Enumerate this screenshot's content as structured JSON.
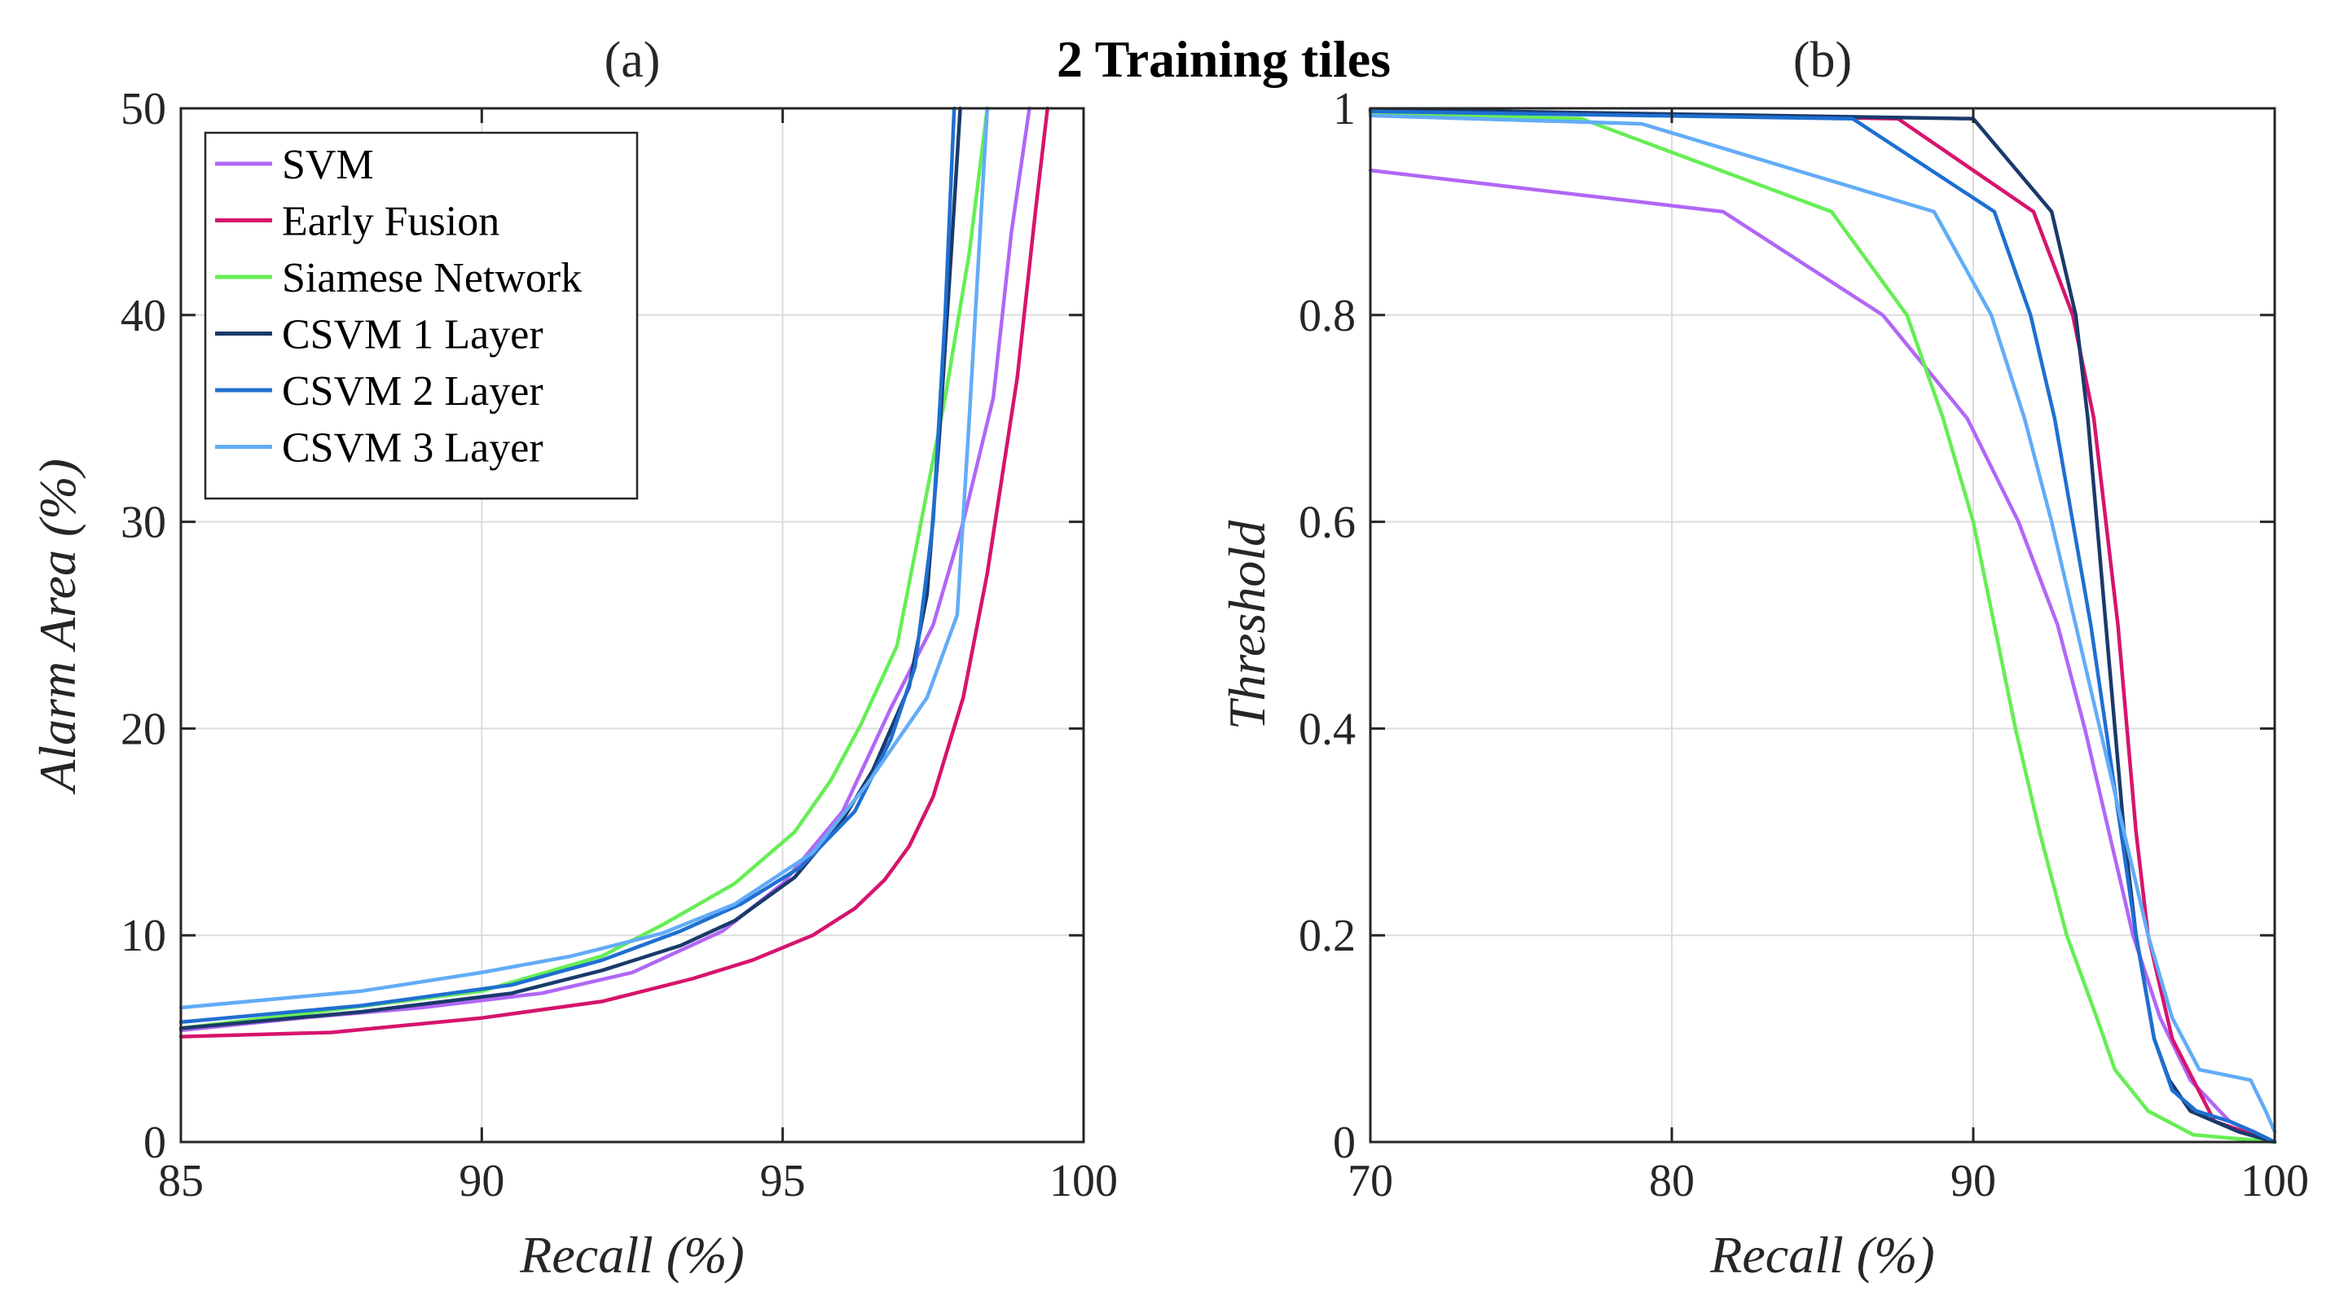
{
  "figure_title": "2 Training tiles",
  "series_styles": [
    {
      "name": "SVM",
      "color": "#b167f5"
    },
    {
      "name": "Early Fusion",
      "color": "#d6146d"
    },
    {
      "name": "Siamese Network",
      "color": "#66ee55"
    },
    {
      "name": "CSVM 1 Layer",
      "color": "#1a3a6b"
    },
    {
      "name": "CSVM 2 Layer",
      "color": "#1f6fd1"
    },
    {
      "name": "CSVM 3 Layer",
      "color": "#62acf7"
    }
  ],
  "chart_data": [
    {
      "type": "line",
      "panel_label": "(a)",
      "xlabel": "Recall (%)",
      "ylabel": "Alarm Area (%)",
      "xlim": [
        85,
        100
      ],
      "ylim": [
        0,
        50
      ],
      "xticks": [
        85,
        90,
        95,
        100
      ],
      "yticks": [
        0,
        10,
        20,
        30,
        40,
        50
      ],
      "grid": true,
      "legend": {
        "placement": "top-left",
        "entries": [
          "SVM",
          "Early Fusion",
          "Siamese Network",
          "CSVM 1 Layer",
          "CSVM 2 Layer",
          "CSVM 3 Layer"
        ]
      },
      "series": [
        {
          "name": "SVM",
          "points": [
            [
              85,
              5.4
            ],
            [
              87,
              6.0
            ],
            [
              89,
              6.5
            ],
            [
              91,
              7.2
            ],
            [
              92.5,
              8.2
            ],
            [
              94,
              10.2
            ],
            [
              95,
              12.5
            ],
            [
              96,
              16.0
            ],
            [
              96.8,
              21.0
            ],
            [
              97.5,
              25.0
            ],
            [
              98,
              30.0
            ],
            [
              98.5,
              36.0
            ],
            [
              98.8,
              44.0
            ],
            [
              99.1,
              50.0
            ]
          ]
        },
        {
          "name": "Early Fusion",
          "points": [
            [
              85,
              5.1
            ],
            [
              87.5,
              5.3
            ],
            [
              90,
              6.0
            ],
            [
              92,
              6.8
            ],
            [
              93.5,
              7.9
            ],
            [
              94.5,
              8.8
            ],
            [
              95.5,
              10.0
            ],
            [
              96.2,
              11.3
            ],
            [
              96.7,
              12.7
            ],
            [
              97.1,
              14.3
            ],
            [
              97.5,
              16.7
            ],
            [
              98,
              21.5
            ],
            [
              98.4,
              27.5
            ],
            [
              98.9,
              37.0
            ],
            [
              99.2,
              45.0
            ],
            [
              99.4,
              50.0
            ]
          ]
        },
        {
          "name": "Siamese Network",
          "points": [
            [
              85,
              5.5
            ],
            [
              87,
              6.2
            ],
            [
              90,
              7.3
            ],
            [
              92,
              9.0
            ],
            [
              93,
              10.5
            ],
            [
              94.2,
              12.5
            ],
            [
              95.2,
              15.0
            ],
            [
              95.8,
              17.5
            ],
            [
              96.3,
              20.2
            ],
            [
              96.9,
              24.0
            ],
            [
              97.3,
              30.0
            ],
            [
              97.7,
              36.0
            ],
            [
              98.1,
              43.0
            ],
            [
              98.4,
              50.0
            ]
          ]
        },
        {
          "name": "CSVM 1 Layer",
          "points": [
            [
              85,
              5.5
            ],
            [
              88,
              6.3
            ],
            [
              90.5,
              7.2
            ],
            [
              92,
              8.3
            ],
            [
              93.3,
              9.5
            ],
            [
              94.2,
              10.7
            ],
            [
              95.2,
              12.8
            ],
            [
              96,
              15.6
            ],
            [
              96.5,
              18.0
            ],
            [
              97.1,
              22.0
            ],
            [
              97.4,
              26.5
            ],
            [
              97.6,
              34.0
            ],
            [
              97.8,
              43.0
            ],
            [
              97.95,
              50.0
            ]
          ]
        },
        {
          "name": "CSVM 2 Layer",
          "points": [
            [
              85,
              5.8
            ],
            [
              88,
              6.6
            ],
            [
              90.5,
              7.6
            ],
            [
              92,
              8.8
            ],
            [
              93.3,
              10.2
            ],
            [
              94.3,
              11.5
            ],
            [
              95.3,
              13.3
            ],
            [
              96.2,
              16.0
            ],
            [
              96.8,
              19.5
            ],
            [
              97.2,
              23.0
            ],
            [
              97.5,
              30.0
            ],
            [
              97.7,
              40.0
            ],
            [
              97.85,
              50.0
            ]
          ]
        },
        {
          "name": "CSVM 3 Layer",
          "points": [
            [
              85,
              6.5
            ],
            [
              88,
              7.3
            ],
            [
              90,
              8.2
            ],
            [
              91.5,
              9.0
            ],
            [
              93,
              10.1
            ],
            [
              94.2,
              11.5
            ],
            [
              95.5,
              14.0
            ],
            [
              96.4,
              17.3
            ],
            [
              97.4,
              21.5
            ],
            [
              97.9,
              25.5
            ],
            [
              98.1,
              35.0
            ],
            [
              98.3,
              45.0
            ],
            [
              98.4,
              50.0
            ]
          ]
        }
      ]
    },
    {
      "type": "line",
      "panel_label": "(b)",
      "xlabel": "Recall (%)",
      "ylabel": "Threshold",
      "xlim": [
        70,
        100
      ],
      "ylim": [
        0,
        1
      ],
      "xticks": [
        70,
        80,
        90,
        100
      ],
      "yticks": [
        0,
        0.2,
        0.4,
        0.6,
        0.8,
        1
      ],
      "ytick_labels": [
        "0",
        "0.2",
        "0.4",
        "0.6",
        "0.8",
        "1"
      ],
      "grid": true,
      "series": [
        {
          "name": "SVM",
          "points": [
            [
              70,
              0.94
            ],
            [
              81.7,
              0.9
            ],
            [
              87,
              0.8
            ],
            [
              89.8,
              0.7
            ],
            [
              91.5,
              0.6
            ],
            [
              92.8,
              0.5
            ],
            [
              93.7,
              0.4
            ],
            [
              94.5,
              0.3
            ],
            [
              95.3,
              0.2
            ],
            [
              96.2,
              0.12
            ],
            [
              97.2,
              0.06
            ],
            [
              98.5,
              0.02
            ],
            [
              100,
              0.0
            ]
          ]
        },
        {
          "name": "Early Fusion",
          "points": [
            [
              70,
              0.998
            ],
            [
              87.5,
              0.99
            ],
            [
              92,
              0.9
            ],
            [
              93.3,
              0.8
            ],
            [
              94,
              0.7
            ],
            [
              94.4,
              0.6
            ],
            [
              94.8,
              0.5
            ],
            [
              95.1,
              0.4
            ],
            [
              95.4,
              0.3
            ],
            [
              95.8,
              0.2
            ],
            [
              96.6,
              0.1
            ],
            [
              98,
              0.02
            ],
            [
              100,
              0.0
            ]
          ]
        },
        {
          "name": "Siamese Network",
          "points": [
            [
              70,
              0.995
            ],
            [
              77,
              0.99
            ],
            [
              85.3,
              0.9
            ],
            [
              87.8,
              0.8
            ],
            [
              89,
              0.7
            ],
            [
              90,
              0.6
            ],
            [
              90.7,
              0.5
            ],
            [
              91.4,
              0.4
            ],
            [
              92.2,
              0.3
            ],
            [
              93.1,
              0.2
            ],
            [
              94.1,
              0.12
            ],
            [
              94.7,
              0.07
            ],
            [
              95.8,
              0.03
            ],
            [
              97.3,
              0.007
            ],
            [
              100,
              0.0
            ]
          ]
        },
        {
          "name": "CSVM 1 Layer",
          "points": [
            [
              70,
              0.999
            ],
            [
              90,
              0.99
            ],
            [
              92.6,
              0.9
            ],
            [
              93.4,
              0.8
            ],
            [
              93.8,
              0.7
            ],
            [
              94.1,
              0.6
            ],
            [
              94.4,
              0.5
            ],
            [
              94.7,
              0.4
            ],
            [
              95.0,
              0.3
            ],
            [
              95.4,
              0.2
            ],
            [
              96.0,
              0.1
            ],
            [
              96.5,
              0.06
            ],
            [
              97.2,
              0.03
            ],
            [
              98.8,
              0.01
            ],
            [
              100,
              0.0
            ]
          ]
        },
        {
          "name": "CSVM 2 Layer",
          "points": [
            [
              70,
              0.997
            ],
            [
              86,
              0.99
            ],
            [
              90.7,
              0.9
            ],
            [
              91.9,
              0.8
            ],
            [
              92.7,
              0.7
            ],
            [
              93.3,
              0.6
            ],
            [
              93.9,
              0.5
            ],
            [
              94.4,
              0.4
            ],
            [
              94.9,
              0.3
            ],
            [
              95.4,
              0.2
            ],
            [
              96.0,
              0.1
            ],
            [
              96.6,
              0.05
            ],
            [
              97.4,
              0.03
            ],
            [
              98.5,
              0.02
            ],
            [
              99.3,
              0.01
            ],
            [
              100,
              0.0
            ]
          ]
        },
        {
          "name": "CSVM 3 Layer",
          "points": [
            [
              70,
              0.993
            ],
            [
              79,
              0.985
            ],
            [
              88.7,
              0.9
            ],
            [
              90.6,
              0.8
            ],
            [
              91.7,
              0.7
            ],
            [
              92.6,
              0.6
            ],
            [
              93.4,
              0.5
            ],
            [
              94.2,
              0.4
            ],
            [
              95.0,
              0.3
            ],
            [
              95.8,
              0.2
            ],
            [
              96.6,
              0.12
            ],
            [
              97.5,
              0.07
            ],
            [
              99.2,
              0.06
            ],
            [
              99.7,
              0.03
            ],
            [
              100,
              0.01
            ]
          ]
        }
      ]
    }
  ]
}
